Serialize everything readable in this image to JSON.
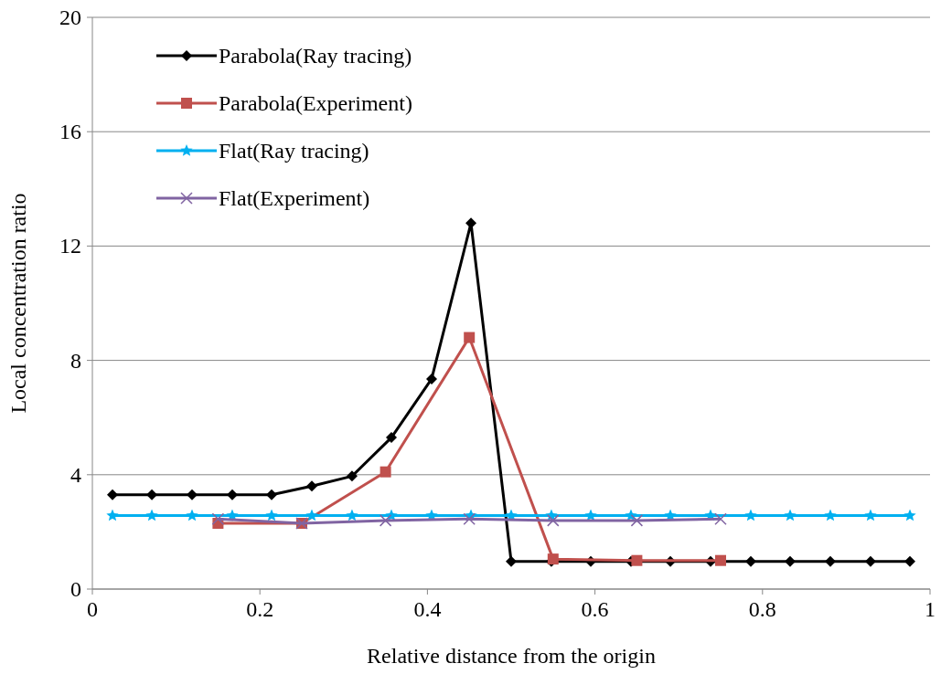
{
  "chart_data": {
    "type": "line",
    "xlabel": "Relative distance from the origin",
    "ylabel": "Local concentration ratio",
    "xlim": [
      0,
      1
    ],
    "xticks": [
      0,
      0.2,
      0.4,
      0.6,
      0.8,
      1
    ],
    "ylim": [
      0,
      20
    ],
    "yticks": [
      0,
      4,
      8,
      12,
      16,
      20
    ],
    "grid": "y",
    "legend": "top left",
    "line_style": "solid",
    "series": [
      {
        "name": "Parabola(Ray tracing)",
        "color": "#000000",
        "marker": "diamond",
        "x": [
          0.024,
          0.071,
          0.119,
          0.167,
          0.214,
          0.262,
          0.31,
          0.357,
          0.405,
          0.452,
          0.5,
          0.548,
          0.595,
          0.643,
          0.69,
          0.738,
          0.786,
          0.833,
          0.881,
          0.929,
          0.976
        ],
        "values": [
          3.3,
          3.3,
          3.3,
          3.3,
          3.3,
          3.6,
          3.95,
          5.3,
          7.35,
          12.8,
          0.97,
          0.97,
          0.97,
          0.97,
          0.97,
          0.97,
          0.97,
          0.97,
          0.97,
          0.97,
          0.97
        ]
      },
      {
        "name": "Parabola(Experiment)",
        "color": "#c0504d",
        "marker": "square",
        "x": [
          0.15,
          0.25,
          0.35,
          0.45,
          0.55,
          0.65,
          0.75
        ],
        "values": [
          2.3,
          2.3,
          4.1,
          8.8,
          1.05,
          1.0,
          1.0
        ]
      },
      {
        "name": "Flat(Ray tracing)",
        "color": "#00b0f0",
        "marker": "star",
        "x": [
          0.024,
          0.071,
          0.119,
          0.167,
          0.214,
          0.262,
          0.31,
          0.357,
          0.405,
          0.452,
          0.5,
          0.548,
          0.595,
          0.643,
          0.69,
          0.738,
          0.786,
          0.833,
          0.881,
          0.929,
          0.976
        ],
        "values": [
          2.57,
          2.57,
          2.57,
          2.57,
          2.57,
          2.57,
          2.57,
          2.57,
          2.57,
          2.57,
          2.57,
          2.57,
          2.57,
          2.57,
          2.57,
          2.57,
          2.57,
          2.57,
          2.57,
          2.57,
          2.57
        ]
      },
      {
        "name": "Flat(Experiment)",
        "color": "#8064a2",
        "marker": "cross",
        "x": [
          0.15,
          0.25,
          0.35,
          0.45,
          0.55,
          0.65,
          0.75
        ],
        "values": [
          2.45,
          2.3,
          2.4,
          2.45,
          2.4,
          2.4,
          2.45
        ]
      }
    ]
  }
}
